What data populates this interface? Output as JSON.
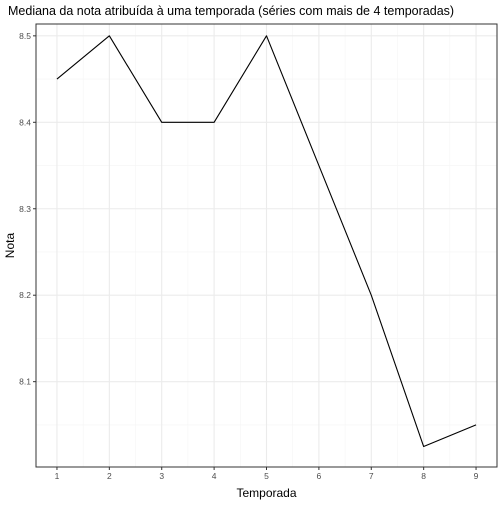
{
  "chart_data": {
    "type": "line",
    "title": "Mediana da nota atribuída à uma temporada (séries com mais de 4 temporadas)",
    "xlabel": "Temporada",
    "ylabel": "Nota",
    "x": [
      1,
      2,
      3,
      4,
      5,
      6,
      7,
      8,
      9
    ],
    "series": [
      {
        "values": [
          8.45,
          8.5,
          8.4,
          8.4,
          8.5,
          8.35,
          8.2,
          8.025,
          8.05
        ]
      }
    ],
    "xlim": [
      0.6,
      9.4
    ],
    "ylim": [
      8.0013,
      8.5137
    ],
    "x_ticks": [
      1,
      2,
      3,
      4,
      5,
      6,
      7,
      8,
      9
    ],
    "x_tick_labels": [
      "1",
      "2",
      "3",
      "4",
      "5",
      "6",
      "7",
      "8",
      "9"
    ],
    "y_ticks": [
      8.1,
      8.2,
      8.3,
      8.4,
      8.5
    ],
    "y_tick_labels": [
      "8.1",
      "8.2",
      "8.3",
      "8.4",
      "8.5"
    ],
    "y_minor_ticks": [
      8.05,
      8.15,
      8.25,
      8.35,
      8.45
    ],
    "x_minor_ticks": [
      1.5,
      2.5,
      3.5,
      4.5,
      5.5,
      6.5,
      7.5,
      8.5
    ],
    "grid": true,
    "legend": "none",
    "colors": {
      "line": "#000000",
      "panel_border": "#333333",
      "grid_major": "#ebebeb",
      "grid_minor": "#f5f5f5",
      "tick_label": "#4d4d4d",
      "axis_title": "#000000"
    }
  }
}
